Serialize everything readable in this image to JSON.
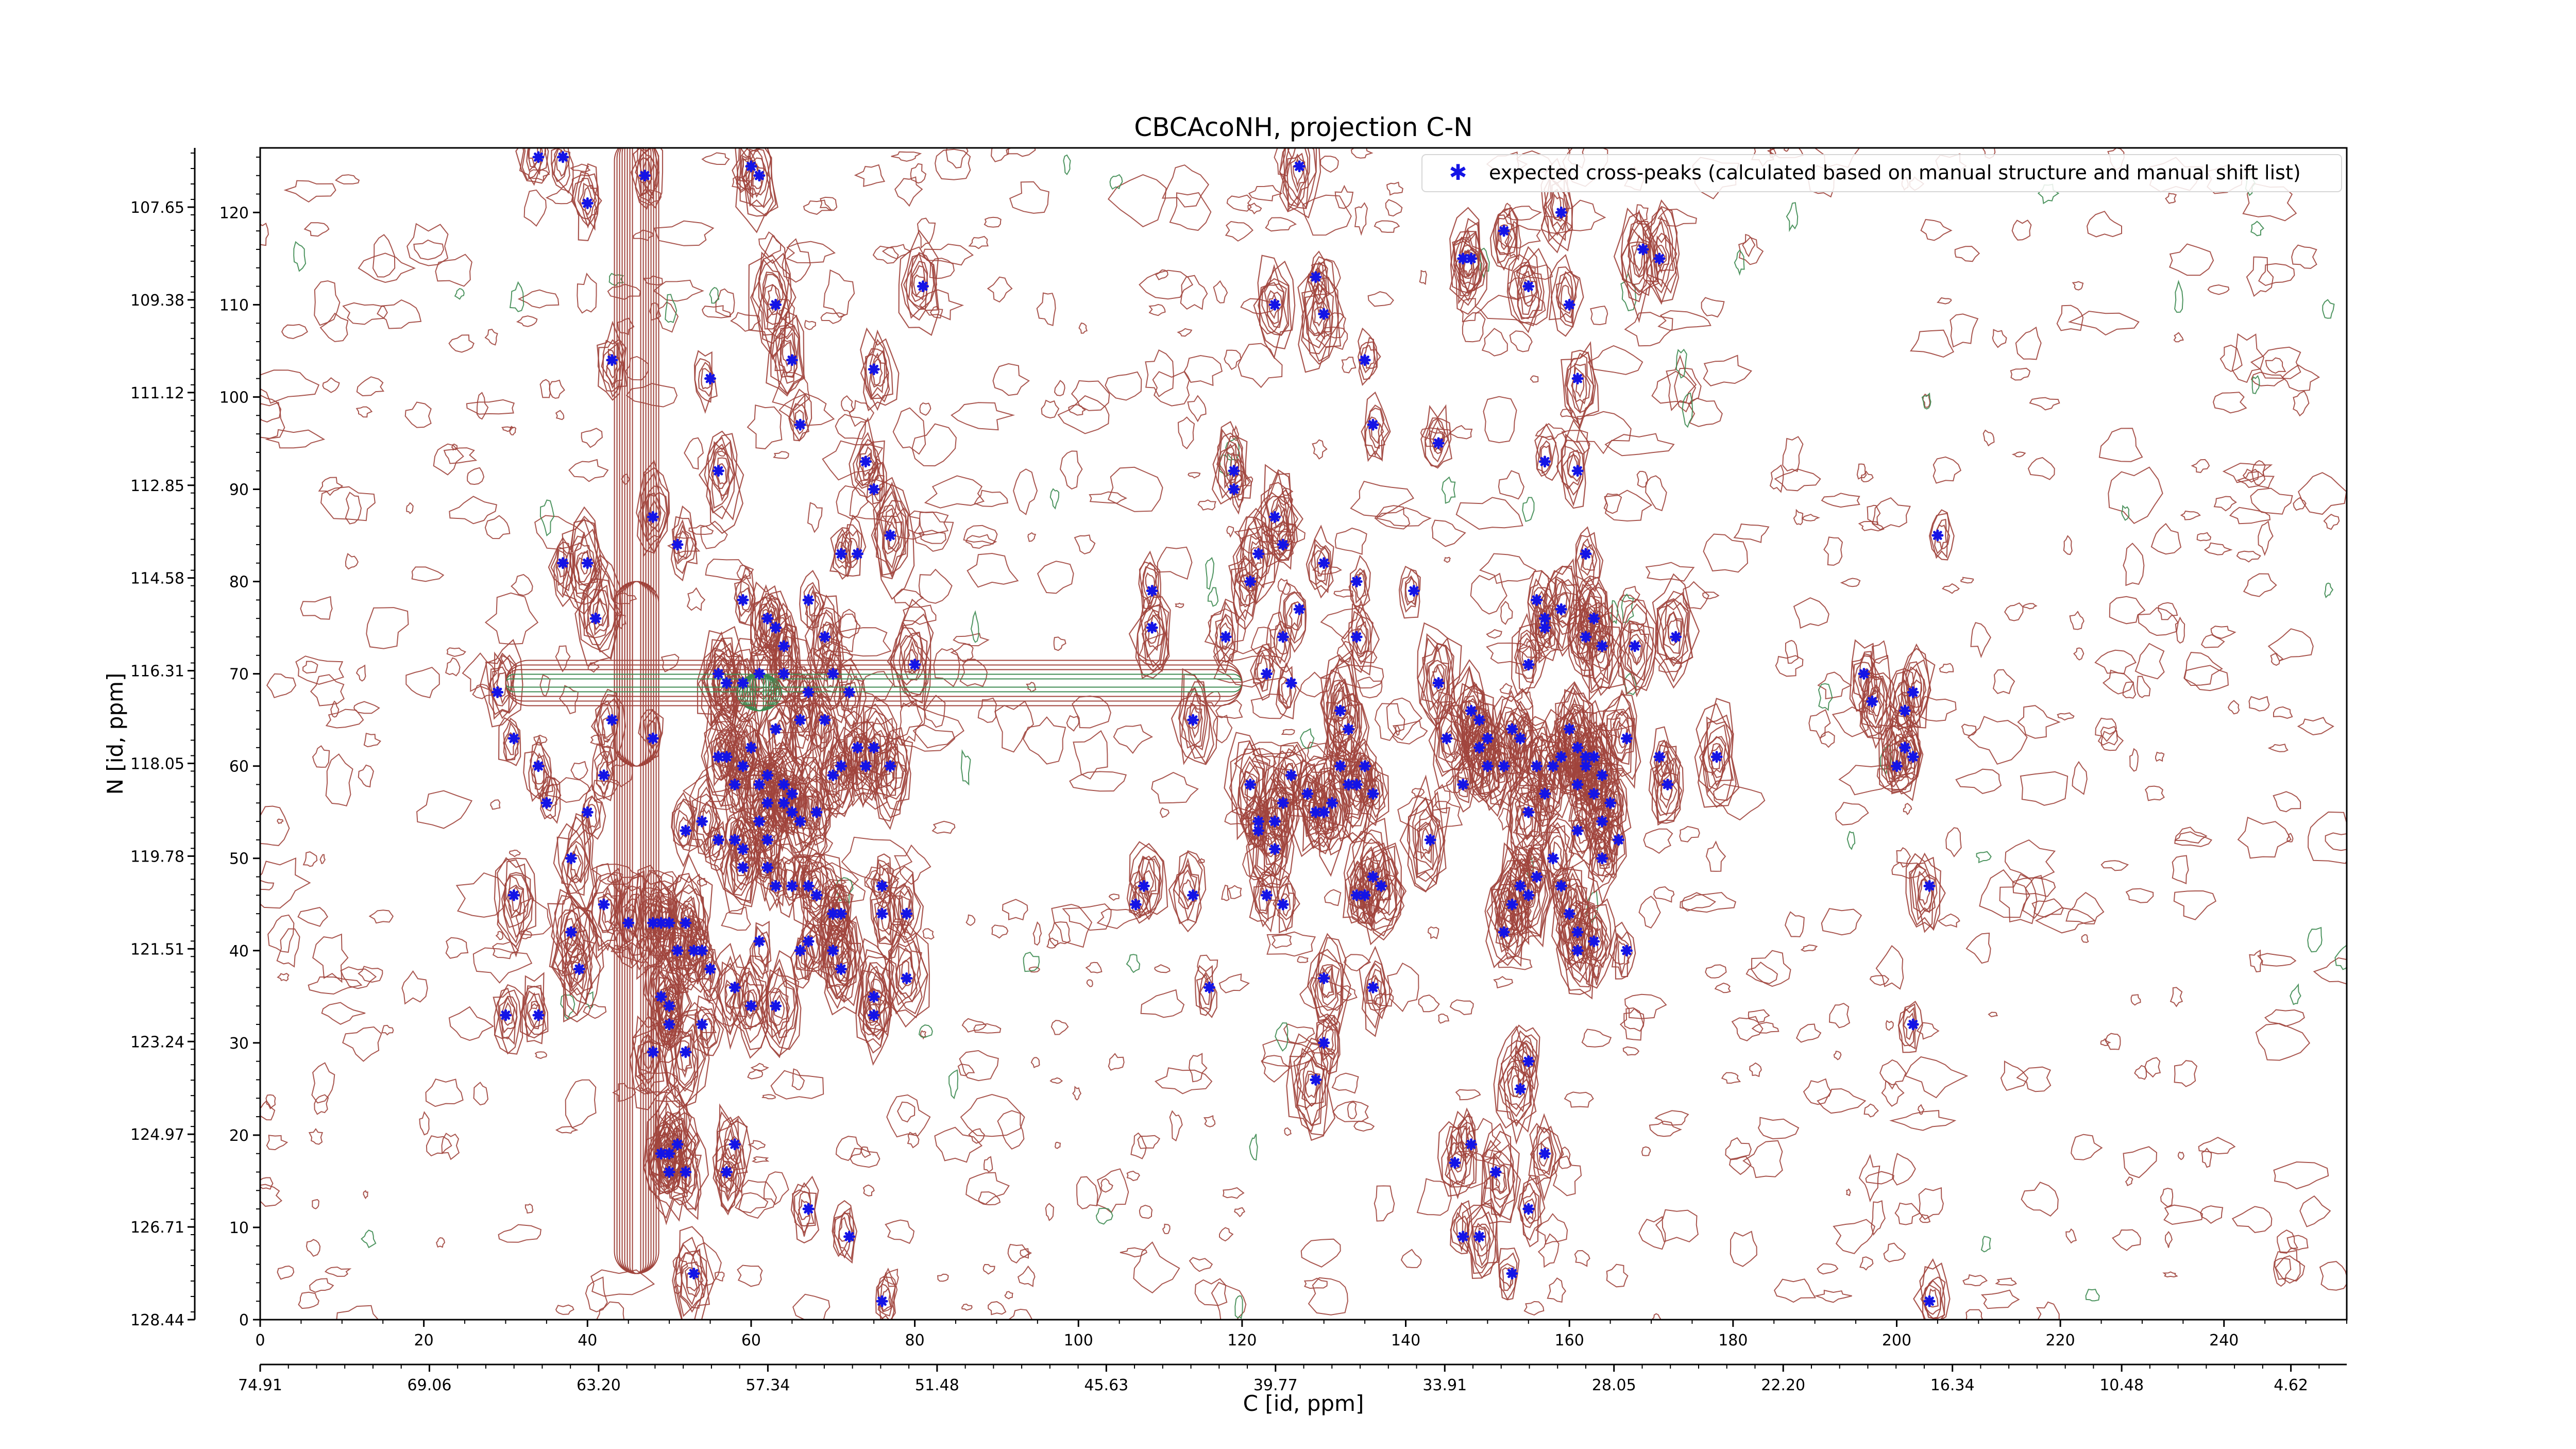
{
  "chart_data": {
    "type": "scatter",
    "title": "CBCAcoNH, projection C-N",
    "xlabel": "C [id, ppm]",
    "ylabel": "N [id, ppm]",
    "xlim": [
      0,
      255
    ],
    "ylim": [
      0,
      127
    ],
    "x_ticks": [
      0,
      20,
      40,
      60,
      80,
      100,
      120,
      140,
      160,
      180,
      200,
      220,
      240
    ],
    "y_ticks": [
      0,
      10,
      20,
      30,
      40,
      50,
      60,
      70,
      80,
      90,
      100,
      110,
      120
    ],
    "c_ppm_ticks": [
      "74.91",
      "69.06",
      "63.20",
      "57.34",
      "51.48",
      "45.63",
      "39.77",
      "33.91",
      "28.05",
      "22.20",
      "16.34",
      "10.48",
      "4.62"
    ],
    "n_ppm_ticks": [
      "107.65",
      "109.38",
      "111.12",
      "112.85",
      "114.58",
      "116.31",
      "118.05",
      "119.78",
      "121.51",
      "123.24",
      "124.97",
      "126.71",
      "128.44"
    ],
    "legend": {
      "position": "top-right",
      "entries": [
        "expected cross-peaks (calculated based on manual structure and manual shift list)"
      ]
    },
    "colors": {
      "peaks": "#1414e6",
      "positive_contours": "#a0443c",
      "negative_contours": "#3c8a50"
    },
    "series": [
      {
        "name": "expected cross-peaks (calculated based on manual structure and manual shift list)",
        "points": [
          [
            34,
            126
          ],
          [
            37,
            126
          ],
          [
            40,
            121
          ],
          [
            47,
            124
          ],
          [
            60,
            125
          ],
          [
            61,
            124
          ],
          [
            43,
            104
          ],
          [
            55,
            102
          ],
          [
            63,
            110
          ],
          [
            65,
            104
          ],
          [
            66,
            97
          ],
          [
            56,
            92
          ],
          [
            74,
            93
          ],
          [
            75,
            90
          ],
          [
            81,
            112
          ],
          [
            75,
            103
          ],
          [
            77,
            85
          ],
          [
            37,
            82
          ],
          [
            40,
            82
          ],
          [
            41,
            76
          ],
          [
            48,
            87
          ],
          [
            51,
            84
          ],
          [
            59,
            78
          ],
          [
            62,
            76
          ],
          [
            63,
            75
          ],
          [
            64,
            73
          ],
          [
            67,
            78
          ],
          [
            71,
            83
          ],
          [
            73,
            83
          ],
          [
            69,
            74
          ],
          [
            70,
            70
          ],
          [
            72,
            68
          ],
          [
            73,
            62
          ],
          [
            80,
            71
          ],
          [
            56,
            70
          ],
          [
            57,
            69
          ],
          [
            59,
            69
          ],
          [
            61,
            70
          ],
          [
            64,
            70
          ],
          [
            29,
            68
          ],
          [
            31,
            63
          ],
          [
            34,
            60
          ],
          [
            35,
            56
          ],
          [
            38,
            50
          ],
          [
            40,
            55
          ],
          [
            42,
            59
          ],
          [
            43,
            65
          ],
          [
            48,
            63
          ],
          [
            52,
            53
          ],
          [
            54,
            54
          ],
          [
            56,
            52
          ],
          [
            56,
            61
          ],
          [
            57,
            61
          ],
          [
            58,
            58
          ],
          [
            59,
            60
          ],
          [
            60,
            62
          ],
          [
            61,
            58
          ],
          [
            61,
            54
          ],
          [
            62,
            59
          ],
          [
            62,
            56
          ],
          [
            63,
            64
          ],
          [
            64,
            58
          ],
          [
            64,
            56
          ],
          [
            65,
            57
          ],
          [
            65,
            55
          ],
          [
            66,
            54
          ],
          [
            66,
            65
          ],
          [
            67,
            68
          ],
          [
            68,
            55
          ],
          [
            69,
            65
          ],
          [
            70,
            59
          ],
          [
            71,
            60
          ],
          [
            74,
            60
          ],
          [
            75,
            62
          ],
          [
            77,
            60
          ],
          [
            58,
            52
          ],
          [
            59,
            51
          ],
          [
            59,
            49
          ],
          [
            62,
            49
          ],
          [
            62,
            52
          ],
          [
            63,
            47
          ],
          [
            65,
            47
          ],
          [
            67,
            47
          ],
          [
            68,
            46
          ],
          [
            70,
            44
          ],
          [
            71,
            44
          ],
          [
            76,
            44
          ],
          [
            76,
            47
          ],
          [
            79,
            44
          ],
          [
            31,
            46
          ],
          [
            38,
            42
          ],
          [
            39,
            38
          ],
          [
            42,
            45
          ],
          [
            45,
            43
          ],
          [
            48,
            43
          ],
          [
            49,
            43
          ],
          [
            50,
            43
          ],
          [
            52,
            43
          ],
          [
            51,
            40
          ],
          [
            53,
            40
          ],
          [
            54,
            40
          ],
          [
            55,
            38
          ],
          [
            61,
            41
          ],
          [
            58,
            36
          ],
          [
            49,
            35
          ],
          [
            50,
            34
          ],
          [
            50,
            32
          ],
          [
            48,
            29
          ],
          [
            52,
            29
          ],
          [
            54,
            32
          ],
          [
            30,
            33
          ],
          [
            34,
            33
          ],
          [
            60,
            34
          ],
          [
            63,
            34
          ],
          [
            66,
            40
          ],
          [
            67,
            41
          ],
          [
            70,
            40
          ],
          [
            71,
            38
          ],
          [
            75,
            35
          ],
          [
            75,
            33
          ],
          [
            79,
            37
          ],
          [
            49,
            18
          ],
          [
            50,
            18
          ],
          [
            51,
            19
          ],
          [
            57,
            16
          ],
          [
            58,
            19
          ],
          [
            67,
            12
          ],
          [
            72,
            9
          ],
          [
            76,
            2
          ],
          [
            53,
            5
          ],
          [
            50,
            16
          ],
          [
            52,
            16
          ],
          [
            119,
            90
          ],
          [
            121,
            80
          ],
          [
            122,
            83
          ],
          [
            124,
            87
          ],
          [
            125,
            84
          ],
          [
            127,
            77
          ],
          [
            130,
            82
          ],
          [
            134,
            80
          ],
          [
            134,
            74
          ],
          [
            141,
            79
          ],
          [
            125,
            74
          ],
          [
            123,
            70
          ],
          [
            109,
            79
          ],
          [
            109,
            75
          ],
          [
            118,
            74
          ],
          [
            114,
            65
          ],
          [
            121,
            58
          ],
          [
            122,
            54
          ],
          [
            124,
            54
          ],
          [
            125,
            56
          ],
          [
            126,
            59
          ],
          [
            128,
            57
          ],
          [
            129,
            55
          ],
          [
            130,
            55
          ],
          [
            131,
            56
          ],
          [
            132,
            60
          ],
          [
            133,
            58
          ],
          [
            134,
            58
          ],
          [
            136,
            57
          ],
          [
            135,
            60
          ],
          [
            133,
            64
          ],
          [
            132,
            66
          ],
          [
            126,
            69
          ],
          [
            144,
            69
          ],
          [
            145,
            63
          ],
          [
            148,
            66
          ],
          [
            149,
            65
          ],
          [
            153,
            64
          ],
          [
            154,
            63
          ],
          [
            155,
            71
          ],
          [
            157,
            75
          ],
          [
            157,
            76
          ],
          [
            156,
            78
          ],
          [
            159,
            77
          ],
          [
            162,
            74
          ],
          [
            163,
            76
          ],
          [
            164,
            73
          ],
          [
            163,
            76
          ],
          [
            168,
            73
          ],
          [
            173,
            74
          ],
          [
            158,
            60
          ],
          [
            159,
            61
          ],
          [
            157,
            57
          ],
          [
            155,
            55
          ],
          [
            156,
            60
          ],
          [
            160,
            64
          ],
          [
            162,
            60
          ],
          [
            163,
            61
          ],
          [
            164,
            59
          ],
          [
            163,
            57
          ],
          [
            164,
            54
          ],
          [
            166,
            52
          ],
          [
            164,
            50
          ],
          [
            161,
            53
          ],
          [
            165,
            56
          ],
          [
            167,
            63
          ],
          [
            171,
            61
          ],
          [
            172,
            58
          ],
          [
            178,
            61
          ],
          [
            162,
            61
          ],
          [
            161,
            62
          ],
          [
            161,
            58
          ],
          [
            143,
            52
          ],
          [
            147,
            58
          ],
          [
            150,
            60
          ],
          [
            152,
            60
          ],
          [
            158,
            50
          ],
          [
            155,
            46
          ],
          [
            156,
            48
          ],
          [
            159,
            47
          ],
          [
            160,
            44
          ],
          [
            161,
            42
          ],
          [
            161,
            40
          ],
          [
            163,
            41
          ],
          [
            167,
            40
          ],
          [
            152,
            42
          ],
          [
            153,
            45
          ],
          [
            154,
            47
          ],
          [
            149,
            62
          ],
          [
            150,
            63
          ],
          [
            137,
            47
          ],
          [
            136,
            48
          ],
          [
            135,
            46
          ],
          [
            134,
            46
          ],
          [
            136,
            36
          ],
          [
            130,
            37
          ],
          [
            130,
            30
          ],
          [
            129,
            26
          ],
          [
            125,
            45
          ],
          [
            123,
            46
          ],
          [
            124,
            51
          ],
          [
            122,
            53
          ],
          [
            114,
            46
          ],
          [
            108,
            47
          ],
          [
            107,
            45
          ],
          [
            116,
            36
          ],
          [
            154,
            25
          ],
          [
            155,
            28
          ],
          [
            157,
            18
          ],
          [
            151,
            16
          ],
          [
            147,
            9
          ],
          [
            146,
            17
          ],
          [
            148,
            19
          ],
          [
            153,
            5
          ],
          [
            155,
            12
          ],
          [
            149,
            9
          ],
          [
            152,
            118
          ],
          [
            155,
            112
          ],
          [
            160,
            110
          ],
          [
            161,
            102
          ],
          [
            161,
            92
          ],
          [
            159,
            120
          ],
          [
            148,
            115
          ],
          [
            147,
            115
          ],
          [
            169,
            116
          ],
          [
            171,
            115
          ],
          [
            124,
            110
          ],
          [
            130,
            109
          ],
          [
            135,
            104
          ],
          [
            136,
            97
          ],
          [
            129,
            113
          ],
          [
            127,
            125
          ],
          [
            119,
            92
          ],
          [
            144,
            95
          ],
          [
            205,
            85
          ],
          [
            196,
            70
          ],
          [
            197,
            67
          ],
          [
            201,
            66
          ],
          [
            200,
            60
          ],
          [
            201,
            62
          ],
          [
            202,
            68
          ],
          [
            202,
            61
          ],
          [
            204,
            47
          ],
          [
            202,
            32
          ],
          [
            204,
            2
          ],
          [
            157,
            93
          ],
          [
            162,
            83
          ]
        ]
      }
    ]
  }
}
